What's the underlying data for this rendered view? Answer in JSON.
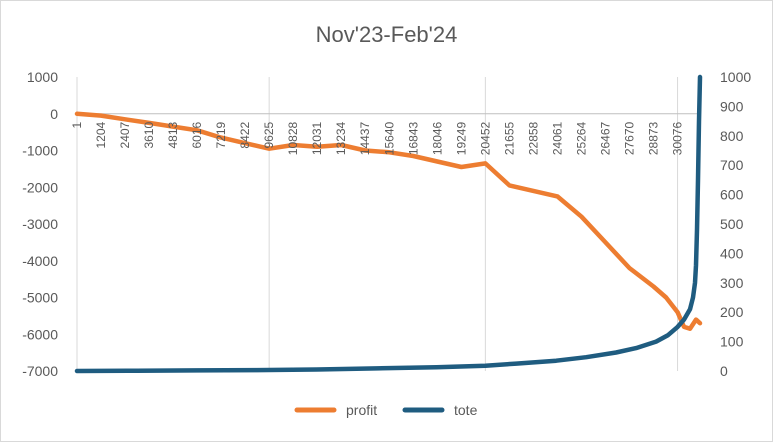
{
  "chart_data": {
    "type": "line",
    "title": "Nov'23-Feb'24",
    "x_tick_labels": [
      "1",
      "1204",
      "2407",
      "3610",
      "4813",
      "6016",
      "7219",
      "8422",
      "9625",
      "10828",
      "12031",
      "13234",
      "14437",
      "15640",
      "16843",
      "18046",
      "19249",
      "20452",
      "21655",
      "22858",
      "24061",
      "25264",
      "26467",
      "27670",
      "28873",
      "30076"
    ],
    "x_range": [
      1,
      31200
    ],
    "y_left": {
      "ylim": [
        -7000,
        1000
      ],
      "ticks": [
        1000,
        0,
        -1000,
        -2000,
        -3000,
        -4000,
        -5000,
        -6000,
        -7000
      ]
    },
    "y_right": {
      "ylim": [
        0,
        1000
      ],
      "ticks": [
        1000,
        900,
        800,
        700,
        600,
        500,
        400,
        300,
        200,
        100,
        0
      ]
    },
    "grid": "vertical-major",
    "legend_position": "bottom",
    "series": [
      {
        "name": "profit",
        "axis": "left",
        "color": "#ED7D31",
        "x": [
          1,
          1204,
          2407,
          3610,
          4813,
          6016,
          7219,
          8422,
          9625,
          10828,
          12031,
          13234,
          14437,
          15640,
          16843,
          18046,
          19249,
          20452,
          21655,
          22858,
          24061,
          25264,
          26467,
          27670,
          28873,
          29500,
          30076,
          30400,
          30700,
          31000,
          31200
        ],
        "y": [
          0,
          -50,
          -150,
          -250,
          -350,
          -450,
          -650,
          -800,
          -950,
          -850,
          -900,
          -850,
          -1000,
          -1050,
          -1150,
          -1300,
          -1450,
          -1350,
          -1950,
          -2100,
          -2250,
          -2800,
          -3500,
          -4200,
          -4700,
          -5000,
          -5400,
          -5800,
          -5850,
          -5600,
          -5700
        ]
      },
      {
        "name": "tote",
        "axis": "right",
        "color": "#1F5C80",
        "x": [
          1,
          3000,
          6000,
          9000,
          12000,
          15000,
          18000,
          20452,
          22000,
          24000,
          25500,
          27000,
          28000,
          29000,
          29600,
          30076,
          30400,
          30700,
          30850,
          30950,
          31000,
          31050,
          31100,
          31150,
          31200
        ],
        "y": [
          0,
          1,
          2,
          3,
          5,
          9,
          13,
          18,
          25,
          35,
          47,
          63,
          78,
          100,
          122,
          150,
          175,
          210,
          250,
          300,
          360,
          480,
          650,
          850,
          1000
        ]
      }
    ]
  }
}
